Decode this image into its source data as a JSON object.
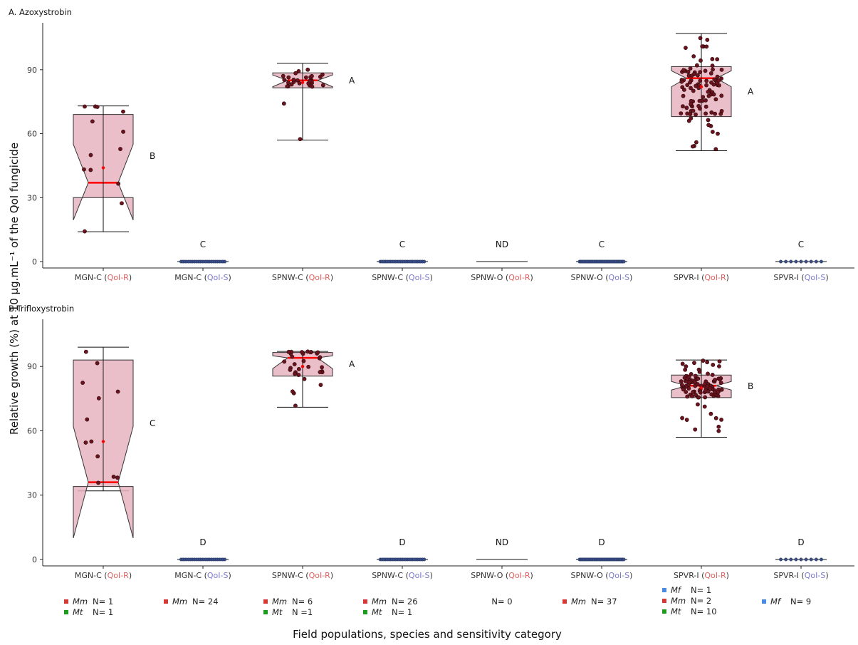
{
  "ylabel": "Relative growth (%) at 10 µg.mL⁻¹ of the QoI fungicide",
  "xlabel": "Field populations, species and sensitivity category",
  "colors": {
    "box_fill": "#e8b4bf",
    "median": "#ff0000",
    "point": "#6b1420",
    "point_edge": "#2a0808",
    "resistant": "#e06060",
    "sensitive": "#7a7ad0",
    "Mm": "#d23a3a",
    "Mt": "#1e9a1e",
    "Mf": "#4a8ae0"
  },
  "categories": [
    {
      "name": "MGN-C",
      "cat": "QoI-R"
    },
    {
      "name": "MGN-C",
      "cat": "QoI-S"
    },
    {
      "name": "SPNW-C",
      "cat": "QoI-R"
    },
    {
      "name": "SPNW-C",
      "cat": "QoI-S"
    },
    {
      "name": "SPNW-O",
      "cat": "QoI-R"
    },
    {
      "name": "SPNW-O",
      "cat": "QoI-S"
    },
    {
      "name": "SPVR-I",
      "cat": "QoI-R"
    },
    {
      "name": "SPVR-I",
      "cat": "QoI-S"
    }
  ],
  "species_counts": [
    [
      {
        "sp": "Mm",
        "n": "N= 1"
      },
      {
        "sp": "Mt",
        "n": "N= 1"
      }
    ],
    [
      {
        "sp": "Mm",
        "n": "N= 24"
      }
    ],
    [
      {
        "sp": "Mm",
        "n": "N= 6"
      },
      {
        "sp": "Mt",
        "n": "N =1"
      }
    ],
    [
      {
        "sp": "Mm",
        "n": "N= 26"
      },
      {
        "sp": "Mt",
        "n": "N= 1"
      }
    ],
    [
      {
        "sp": "",
        "n": "N= 0"
      }
    ],
    [
      {
        "sp": "Mm",
        "n": "N= 37"
      }
    ],
    [
      {
        "sp": "Mf",
        "n": "N= 1"
      },
      {
        "sp": "Mm",
        "n": "N= 2"
      },
      {
        "sp": "Mt",
        "n": "N= 10"
      }
    ],
    [
      {
        "sp": "Mf",
        "n": "N= 9"
      }
    ]
  ],
  "chart_data": [
    {
      "type": "box",
      "title": "A. Azoxystrobin",
      "ylim": [
        -3,
        112
      ],
      "yticks": [
        0,
        30,
        60,
        90
      ],
      "letters": [
        "B",
        "C",
        "A",
        "C",
        "ND",
        "C",
        "A",
        "C"
      ],
      "boxes": [
        {
          "min": 14,
          "q1": 30,
          "median": 37,
          "q3": 69,
          "max": 73,
          "notch_lo": 19.5,
          "notch_hi": 55,
          "mean": 44,
          "n": 13
        },
        {
          "min": 0,
          "q1": 0,
          "median": 0,
          "q3": 0,
          "max": 0,
          "n": 24
        },
        {
          "min": 57,
          "q1": 81.5,
          "median": 85,
          "q3": 88.5,
          "max": 93,
          "notch_lo": 82,
          "notch_hi": 87.5,
          "mean": 84,
          "n": 30
        },
        {
          "min": 0,
          "q1": 0,
          "median": 0,
          "q3": 0,
          "max": 0,
          "n": 27
        },
        {
          "min": 0,
          "q1": 0,
          "median": 0,
          "q3": 0,
          "max": 0,
          "n": 0
        },
        {
          "min": 0,
          "q1": 0,
          "median": 0,
          "q3": 0,
          "max": 0,
          "n": 37
        },
        {
          "min": 52,
          "q1": 68,
          "median": 86,
          "q3": 91.5,
          "max": 107,
          "notch_lo": 82,
          "notch_hi": 89.5,
          "mean": 82,
          "n": 100
        },
        {
          "min": 0,
          "q1": 0,
          "median": 0,
          "q3": 0,
          "max": 0,
          "n": 9
        }
      ]
    },
    {
      "type": "box",
      "title": "B.Trifloxystrobin",
      "ylim": [
        -3,
        112
      ],
      "yticks": [
        0,
        30,
        60,
        90
      ],
      "letters": [
        "C",
        "D",
        "A",
        "D",
        "ND",
        "D",
        "B",
        "D"
      ],
      "boxes": [
        {
          "min": 32,
          "q1": 34,
          "median": 36,
          "q3": 93,
          "max": 99,
          "notch_lo": 10,
          "notch_hi": 62,
          "mean": 55,
          "n": 12
        },
        {
          "min": 0,
          "q1": 0,
          "median": 0,
          "q3": 0,
          "max": 0,
          "n": 24
        },
        {
          "min": 71,
          "q1": 85.5,
          "median": 94,
          "q3": 96.5,
          "max": 97,
          "notch_lo": 89,
          "notch_hi": 95,
          "mean": 90,
          "n": 32
        },
        {
          "min": 0,
          "q1": 0,
          "median": 0,
          "q3": 0,
          "max": 0,
          "n": 27
        },
        {
          "min": 0,
          "q1": 0,
          "median": 0,
          "q3": 0,
          "max": 0,
          "n": 0
        },
        {
          "min": 0,
          "q1": 0,
          "median": 0,
          "q3": 0,
          "max": 0,
          "n": 37
        },
        {
          "min": 57,
          "q1": 75.5,
          "median": 81,
          "q3": 86,
          "max": 93,
          "notch_lo": 79,
          "notch_hi": 83,
          "mean": 80,
          "n": 100
        },
        {
          "min": 0,
          "q1": 0,
          "median": 0,
          "q3": 0,
          "max": 0,
          "n": 9
        }
      ]
    }
  ]
}
